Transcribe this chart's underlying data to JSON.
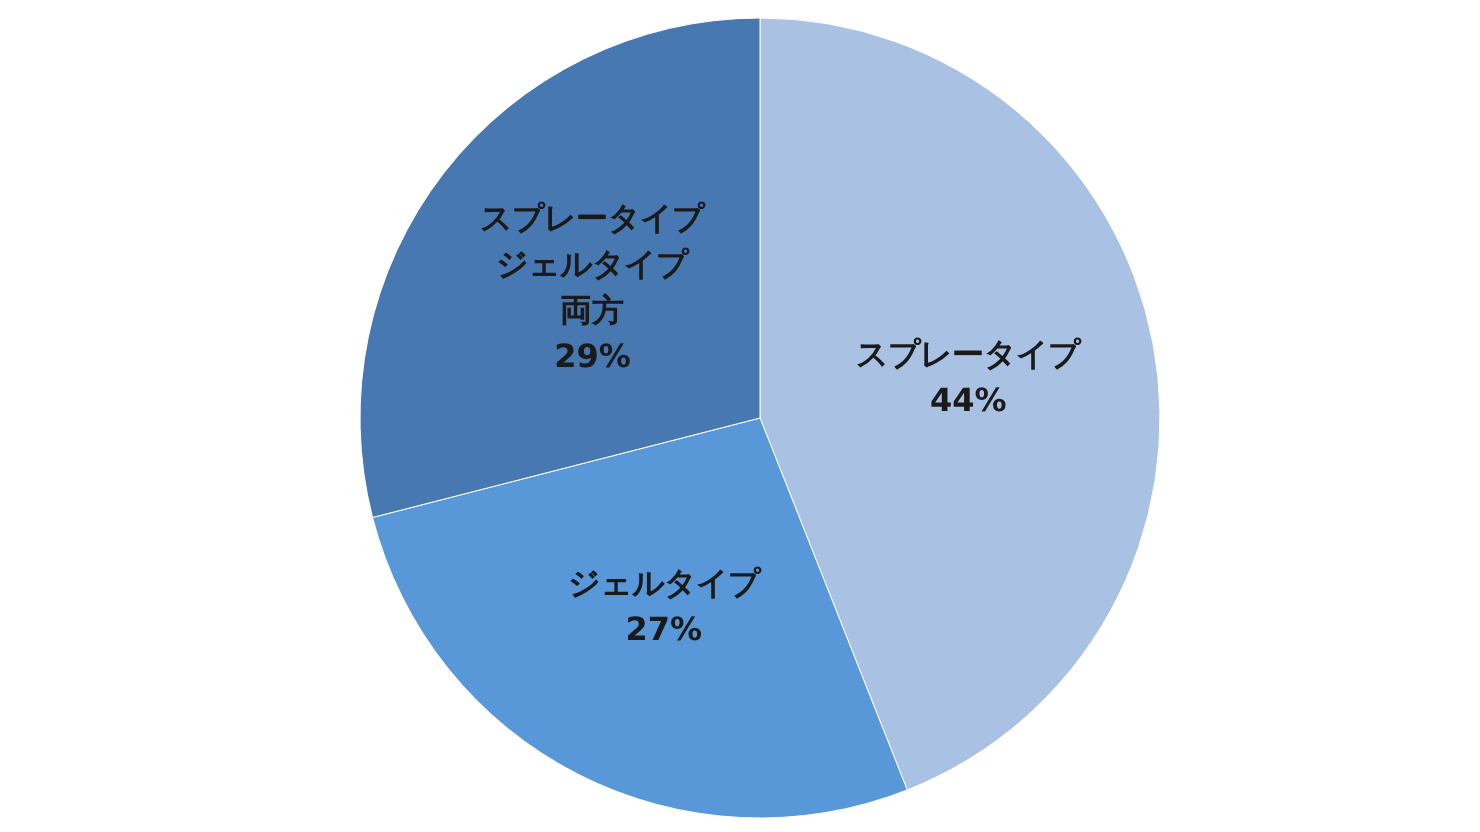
{
  "chart_data": {
    "type": "pie",
    "categories": [
      "スプレータイプ",
      "ジェルタイプ",
      "スプレータイプジェルタイプ両方"
    ],
    "values": [
      44,
      27,
      29
    ],
    "value_labels": [
      "44%",
      "27%",
      "29%"
    ],
    "colors": [
      "#a9c1e3",
      "#5898d8",
      "#4778b1"
    ]
  }
}
